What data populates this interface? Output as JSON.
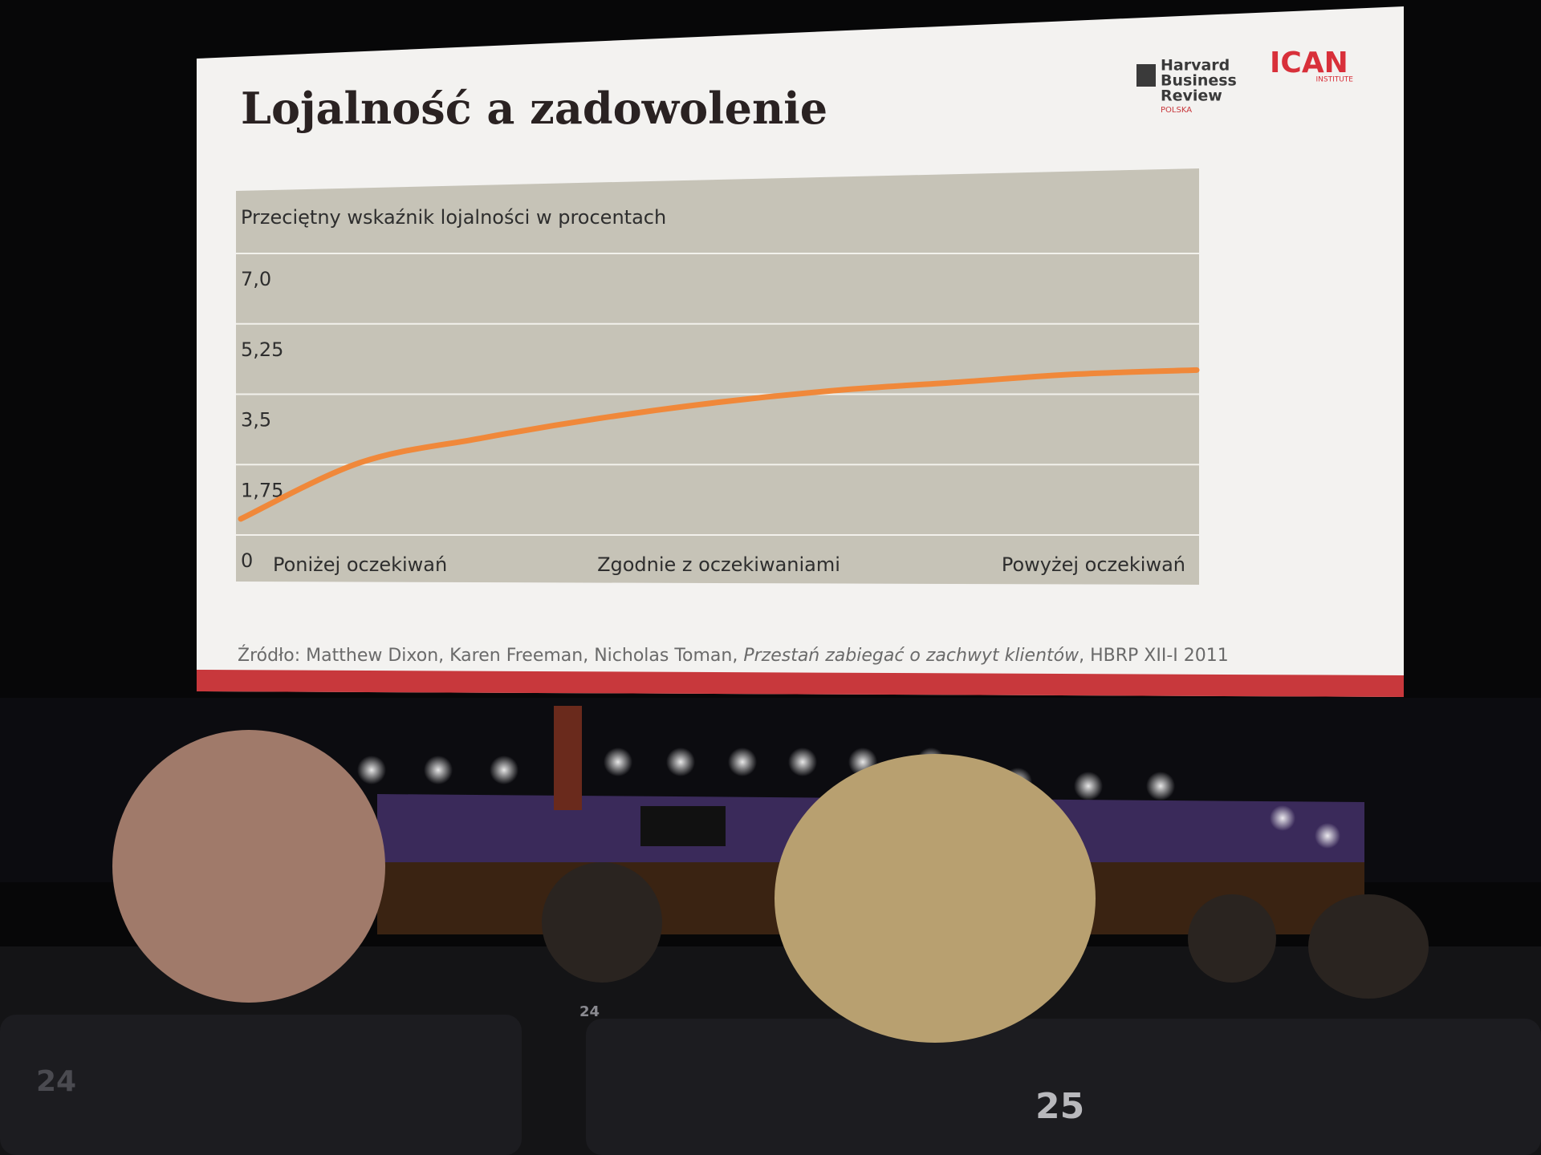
{
  "chart_data": {
    "type": "line",
    "title": "Lojalność a zadowolenie",
    "y_label": "Przeciętny wskaźnik lojalności w procentach",
    "categories": [
      "Poniżej oczekiwań",
      null,
      null,
      null,
      "Zgodnie z oczekiwaniami",
      null,
      null,
      null,
      "Powyżej oczekiwań"
    ],
    "values": [
      0.4,
      1.8,
      2.4,
      2.9,
      3.3,
      3.6,
      3.8,
      4.0,
      4.1
    ],
    "color": "#f0883a",
    "ylim": [
      0,
      7
    ],
    "yticks": [
      0,
      {
        "value": 1.75,
        "label": "1,75"
      },
      {
        "value": 3.5,
        "label": "3,5"
      },
      {
        "value": 5.25,
        "label": "5,25"
      },
      {
        "value": 7,
        "label": "7,0"
      }
    ],
    "grid": true
  },
  "source": {
    "prefix": "Źródło: Matthew Dixon, Karen Freeman, Nicholas Toman, ",
    "title": "Przestań zabiegać o zachwyt klientów",
    "suffix": ", HBRP XII-I 2011"
  },
  "logos": {
    "hbr": [
      "Harvard",
      "Business",
      "Review"
    ],
    "hbr_sub": "POLSKA",
    "ican": "ICAN",
    "ican_sub": "INSTITUTE"
  },
  "seats": [
    "24",
    "24",
    "25"
  ]
}
